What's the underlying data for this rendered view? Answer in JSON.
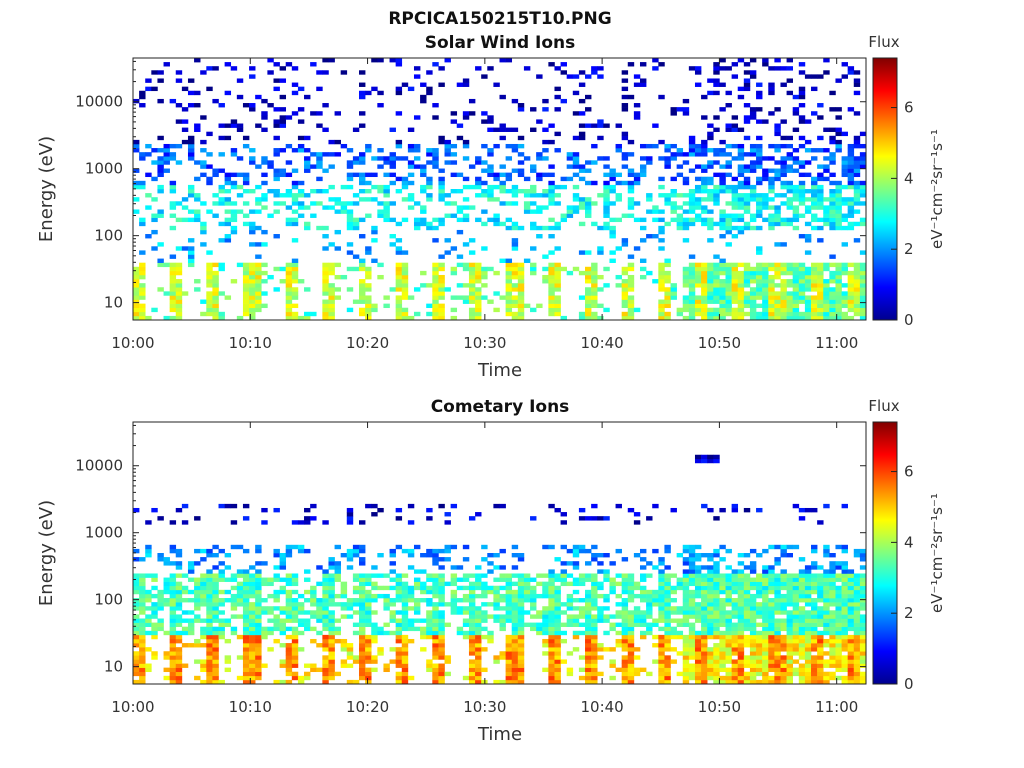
{
  "figure_title": "RPCICA150215T10.PNG",
  "colorbar_label_html": "eV⁻¹cm⁻²sr⁻¹s⁻¹",
  "chart_data": [
    {
      "type": "heatmap",
      "title": "Solar Wind Ions",
      "xlabel": "Time",
      "ylabel": "Energy (eV)",
      "x_ticks": [
        "10:00",
        "10:10",
        "10:20",
        "10:30",
        "10:40",
        "10:50",
        "11:00"
      ],
      "x_range_minutes": [
        0,
        62.5
      ],
      "y_scale": "log",
      "y_ticks": [
        "10",
        "100",
        "1000",
        "10000"
      ],
      "y_range": [
        5.5,
        45000
      ],
      "colorbar": {
        "label": "Flux",
        "unit": "eV-1cm-2sr-1s-1",
        "range": [
          0,
          7.4
        ],
        "ticks": [
          "0",
          "2",
          "4",
          "6"
        ],
        "colormap": "jet"
      },
      "features": [
        {
          "band_eV": [
            6,
            40
          ],
          "flux": 4.2,
          "note": "periodic bursts every ~3 min"
        },
        {
          "band_eV": [
            150,
            600
          ],
          "flux": 3.0
        },
        {
          "band_eV": [
            700,
            2500
          ],
          "flux": 1.5
        },
        {
          "band_eV": [
            3000,
            40000
          ],
          "flux": 0.6,
          "note": "sparse low-flux pixels"
        },
        {
          "time_after": "10:47",
          "band_eV": [
            6,
            40
          ],
          "flux": 3.6,
          "note": "continuous"
        }
      ]
    },
    {
      "type": "heatmap",
      "title": "Cometary Ions",
      "xlabel": "Time",
      "ylabel": "Energy (eV)",
      "x_ticks": [
        "10:00",
        "10:10",
        "10:20",
        "10:30",
        "10:40",
        "10:50",
        "11:00"
      ],
      "x_range_minutes": [
        0,
        62.5
      ],
      "y_scale": "log",
      "y_ticks": [
        "10",
        "100",
        "1000",
        "10000"
      ],
      "y_range": [
        5.5,
        45000
      ],
      "colorbar": {
        "label": "Flux",
        "unit": "eV-1cm-2sr-1s-1",
        "range": [
          0,
          7.4
        ],
        "ticks": [
          "0",
          "2",
          "4",
          "6"
        ],
        "colormap": "jet"
      },
      "features": [
        {
          "band_eV": [
            6,
            30
          ],
          "flux": 5.3,
          "note": "periodic bursts every ~3 min"
        },
        {
          "band_eV": [
            30,
            250
          ],
          "flux": 3.3
        },
        {
          "band_eV": [
            250,
            700
          ],
          "flux": 1.8
        },
        {
          "band_eV": [
            1500,
            2500
          ],
          "flux": 0.6,
          "note": "sparse"
        },
        {
          "time_after": "10:47",
          "band_eV": [
            10,
            200
          ],
          "flux": 4.2,
          "note": "continuous"
        }
      ]
    }
  ]
}
